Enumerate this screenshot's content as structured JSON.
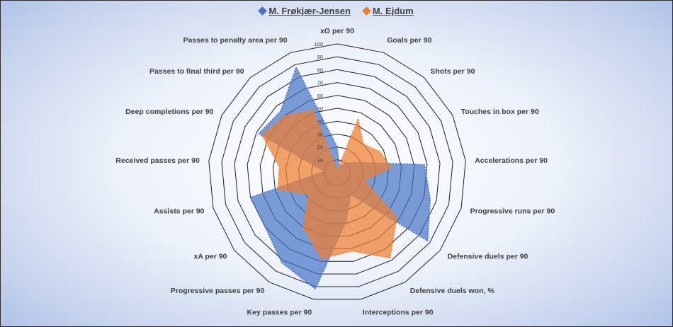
{
  "chart_data": {
    "type": "radar",
    "title": "",
    "axes": [
      "xG per 90",
      "Goals per 90",
      "Shots per 90",
      "Touches in box per 90",
      "Accelerations per 90",
      "Progressive runs per 90",
      "Defensive duels per 90",
      "Defensive duels won, %",
      "Interceptions per 90",
      "Key passes per 90",
      "Progressive passes per 90",
      "xA per 90",
      "Assists per 90",
      "Received passes per 90",
      "Deep completions per 90",
      "Passes to final third per 90",
      "Passes to penalty area per 90"
    ],
    "rlim": [
      0,
      100
    ],
    "ticks": [
      0,
      10,
      20,
      30,
      40,
      50,
      60,
      70,
      80,
      90,
      100
    ],
    "tick_labels": [
      "-",
      "10",
      "20",
      "30",
      "40",
      "50",
      "60",
      "70",
      "80",
      "90",
      "100"
    ],
    "series": [
      {
        "name": "M. Frøkjær-Jensen",
        "color": "#4472c4",
        "values": [
          20,
          5,
          10,
          18,
          68,
          75,
          88,
          20,
          38,
          92,
          82,
          70,
          70,
          10,
          68,
          65,
          88
        ]
      },
      {
        "name": "M. Ejdum",
        "color": "#ed7d31",
        "values": [
          2,
          45,
          30,
          37,
          42,
          22,
          58,
          78,
          62,
          68,
          50,
          28,
          48,
          45,
          65,
          60,
          52
        ]
      }
    ],
    "legend": "top"
  }
}
